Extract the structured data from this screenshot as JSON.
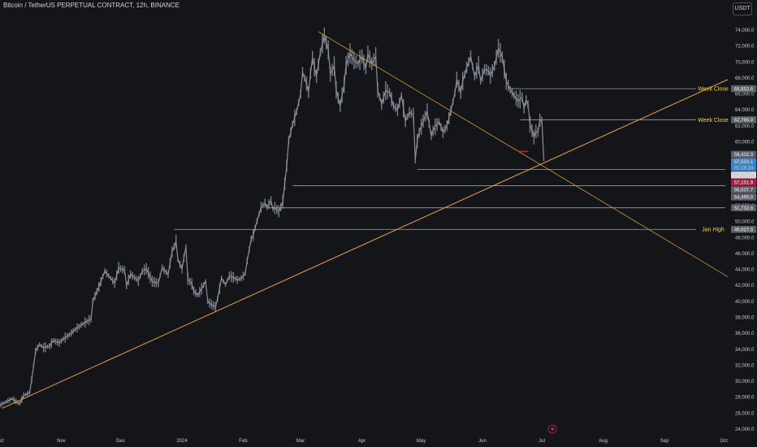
{
  "header": {
    "title": "Bitcoin / TetherUS PERPETUAL CONTRACT, 12h, BINANCE",
    "currency": "USDT"
  },
  "colors": {
    "background": "#141519",
    "candle": "#8a8f99",
    "trendline": "#e8a23a",
    "level_line": "#9aa0aa",
    "annotation": "#f0d35b",
    "price_badge_blue": "#3b84c6",
    "price_badge_red": "#b3173f",
    "red_marker": "#e0364c"
  },
  "chart_data": {
    "type": "line",
    "instrument": "BTCUSDT.P",
    "interval": "12h",
    "y_axis": {
      "min": 24000,
      "max": 75000,
      "step": 2000,
      "ticks": [
        "24,000.0",
        "26,000.0",
        "28,000.0",
        "30,000.0",
        "32,000.0",
        "34,000.0",
        "36,000.0",
        "38,000.0",
        "40,000.0",
        "42,000.0",
        "44,000.0",
        "46,000.0",
        "48,000.0",
        "50,000.0",
        "52,000.0",
        "54,000.0",
        "56,000.0",
        "58,000.0",
        "60,000.0",
        "62,000.0",
        "64,000.0",
        "66,000.0",
        "68,000.0",
        "70,000.0",
        "72,000.0",
        "74,000.0"
      ]
    },
    "x_axis": {
      "labels": [
        "Oct",
        "Nov",
        "Dec",
        "2024",
        "Feb",
        "Mar",
        "Apr",
        "May",
        "Jun",
        "Jul",
        "Aug",
        "Sep",
        "Oct"
      ],
      "label_days": [
        0,
        31,
        61,
        92,
        123,
        152,
        183,
        213,
        244,
        274,
        305,
        336,
        366
      ],
      "range_days": [
        0,
        368
      ]
    },
    "price_path": {
      "days": [
        0,
        6,
        10,
        12,
        15,
        16,
        18,
        20,
        22,
        25,
        27,
        30,
        32,
        35,
        38,
        42,
        44,
        46,
        47,
        50,
        53,
        55,
        58,
        60,
        63,
        64,
        66,
        70,
        72,
        74,
        77,
        80,
        82,
        85,
        87,
        89,
        90,
        92,
        94,
        95,
        97,
        98,
        100,
        102,
        104,
        105,
        107,
        109,
        110,
        112,
        114,
        116,
        118,
        120,
        122,
        124,
        125,
        127,
        128,
        130,
        132,
        134,
        135,
        137,
        138,
        139,
        141,
        142,
        143,
        145,
        146,
        148,
        150,
        152,
        153,
        155,
        156,
        157,
        158,
        160,
        162,
        163,
        164,
        166,
        167,
        169,
        170,
        172,
        174,
        175,
        177,
        179,
        181,
        183,
        185,
        186,
        188,
        190,
        191,
        193,
        195,
        197,
        199,
        201,
        203,
        205,
        207,
        209,
        210,
        211,
        212,
        214,
        216,
        218,
        220,
        222,
        224,
        226,
        228,
        229,
        230,
        231,
        233,
        234,
        236,
        238,
        240,
        242,
        243,
        245,
        247,
        248,
        250,
        252,
        254,
        256,
        258,
        260,
        262,
        264,
        265,
        266,
        267,
        268,
        270,
        271,
        272,
        273,
        274,
        275
      ],
      "close": [
        27000,
        27800,
        27200,
        28200,
        28600,
        30200,
        33800,
        34600,
        34200,
        34400,
        35100,
        34800,
        35300,
        35800,
        36500,
        37200,
        37500,
        37800,
        40100,
        41800,
        43800,
        43200,
        42300,
        44200,
        43900,
        42000,
        43400,
        42600,
        43800,
        44100,
        42500,
        42300,
        44200,
        43400,
        46200,
        47500,
        45200,
        44100,
        46800,
        42800,
        42200,
        41300,
        40800,
        41600,
        42500,
        40000,
        39600,
        39300,
        40300,
        42900,
        42100,
        43200,
        43000,
        42700,
        42900,
        43500,
        45100,
        47800,
        48300,
        50100,
        51800,
        52300,
        51800,
        52600,
        51600,
        51700,
        51300,
        51800,
        52500,
        57000,
        60200,
        62200,
        63800,
        66000,
        68700,
        67300,
        66200,
        68600,
        70500,
        68200,
        71200,
        72300,
        73300,
        71500,
        68500,
        69500,
        66500,
        64500,
        67200,
        69600,
        71100,
        70200,
        69800,
        70700,
        69200,
        71000,
        69800,
        70700,
        66500,
        64700,
        66400,
        66200,
        64500,
        64000,
        65800,
        62600,
        63700,
        63400,
        57800,
        60100,
        61200,
        62600,
        63800,
        60800,
        61900,
        62500,
        61200,
        62000,
        63900,
        65000,
        66100,
        67800,
        66200,
        67600,
        69300,
        70700,
        68200,
        69600,
        67600,
        69100,
        68900,
        68300,
        69500,
        71700,
        70600,
        67600,
        66500,
        65800,
        65100,
        65600,
        64200,
        65200,
        64700,
        62200,
        60600,
        61300,
        61200,
        62700,
        62700,
        57600
      ]
    },
    "trendlines": [
      {
        "name": "ascending-support",
        "from": [
          1,
          26600
        ],
        "to": [
          368,
          67800
        ]
      },
      {
        "name": "descending-resistance",
        "from": [
          161,
          73800
        ],
        "to": [
          368,
          43100
        ]
      }
    ],
    "levels": [
      {
        "price": 66653.6,
        "label": "Week Close",
        "start_day": 258
      },
      {
        "price": 62766.0,
        "label": "Week Close",
        "start_day": 263
      },
      {
        "price": 56537.7,
        "label": "",
        "start_day": 211
      },
      {
        "price": 54495.0,
        "label": "",
        "start_day": 148
      },
      {
        "price": 51732.6,
        "label": "",
        "start_day": 135
      },
      {
        "price": 49027.5,
        "label": "Jan High",
        "start_day": 88
      }
    ],
    "price_badges": [
      {
        "price": 66653.6,
        "text": "66,653.6",
        "style": "grey"
      },
      {
        "price": 62766.0,
        "text": "62,766.0",
        "style": "grey"
      },
      {
        "price": 58432.3,
        "text": "58,432.3",
        "style": "grey"
      },
      {
        "price": 57550.1,
        "text": "57,550.1",
        "style": "blue",
        "subtext": "01:18:24"
      },
      {
        "price": 57315.4,
        "text": "57,315.4",
        "style": "white"
      },
      {
        "price": 57151.9,
        "text": "57,151.9",
        "style": "red"
      },
      {
        "price": 56537.7,
        "text": "56,537.7",
        "style": "grey"
      },
      {
        "price": 54495.0,
        "text": "54,495.0",
        "style": "grey"
      },
      {
        "price": 51732.6,
        "text": "51,732.6",
        "style": "grey"
      },
      {
        "price": 49027.5,
        "text": "49,027.5",
        "style": "grey"
      }
    ],
    "grid": false
  }
}
